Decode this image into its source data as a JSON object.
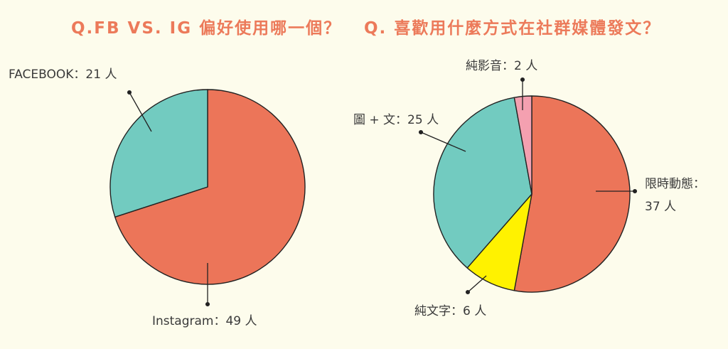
{
  "chart_data": [
    {
      "type": "pie",
      "title": "Q.FB VS. IG 偏好使用哪一個？",
      "slices": [
        {
          "label": "Instagram",
          "value": 49,
          "unit": "人",
          "label_text": "Instagram：49 人",
          "color": "#ec7559"
        },
        {
          "label": "FACEBOOK",
          "value": 21,
          "unit": "人",
          "label_text": "FACEBOOK：21 人",
          "color": "#72cbc0"
        }
      ]
    },
    {
      "type": "pie",
      "title": "Q. 喜歡用什麼方式在社群媒體發文？",
      "slices": [
        {
          "label": "限時動態",
          "value": 37,
          "unit": "人",
          "label_lines": [
            "限時動態：",
            "37 人"
          ],
          "color": "#ec7559"
        },
        {
          "label": "純文字",
          "value": 6,
          "unit": "人",
          "label_text": "純文字：6 人",
          "color": "#fff200"
        },
        {
          "label": "圖 + 文",
          "value": 25,
          "unit": "人",
          "label_text": "圖 + 文：25 人",
          "color": "#72cbc0"
        },
        {
          "label": "純影音",
          "value": 2,
          "unit": "人",
          "label_text": "純影音：2 人",
          "color": "#f4a0b0"
        }
      ]
    }
  ]
}
